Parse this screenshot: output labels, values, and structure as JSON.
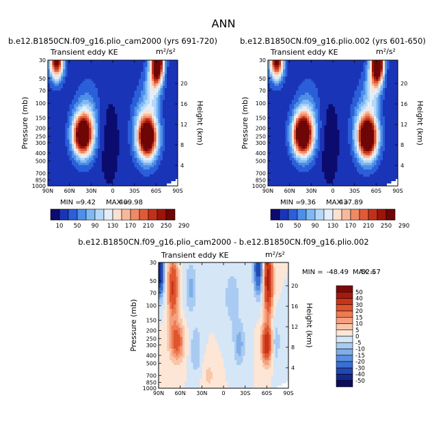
{
  "page_title": "ANN",
  "chart_data": [
    {
      "type": "heatmap",
      "title": "b.e12.B1850CN.f09_g16.plio_cam2000 (yrs 691-720)",
      "field": "Transient eddy KE",
      "units": "m²/s²",
      "ylabel": "Pressure (mb)",
      "ylabel_right": "Height (km)",
      "x_ticks": [
        "90N",
        "60N",
        "30N",
        "0",
        "30S",
        "60S",
        "90S"
      ],
      "y_ticks": [
        "30",
        "50",
        "70",
        "100",
        "150",
        "200",
        "250",
        "300",
        "400",
        "500",
        "700",
        "850",
        "1000"
      ],
      "height_ticks": [
        "20",
        "16",
        "12",
        "8",
        "4"
      ],
      "stats": {
        "min": "9.42",
        "max": "409.98"
      },
      "stats_labels": {
        "min": "MIN =",
        "max": "MAX ="
      },
      "colorbar": {
        "labels": [
          "10",
          "50",
          "90",
          "130",
          "170",
          "210",
          "250",
          "290"
        ],
        "colors": [
          "#0c0c6e",
          "#1a34b8",
          "#2a5fd9",
          "#4d8fe8",
          "#7fb8f3",
          "#b6d9f8",
          "#e3eefa",
          "#fbe2d0",
          "#f6b99b",
          "#ee8a65",
          "#e05a38",
          "#c3301a",
          "#9c1509",
          "#6e0606"
        ]
      }
    },
    {
      "type": "heatmap",
      "title": "b.e12.B1850CN.f09_g16.plio.002 (yrs 601-650)",
      "field": "Transient eddy KE",
      "units": "m²/s²",
      "ylabel": "Pressure (mb)",
      "ylabel_right": "Height (km)",
      "x_ticks": [
        "90N",
        "60N",
        "30N",
        "0",
        "30S",
        "60S",
        "90S"
      ],
      "y_ticks": [
        "30",
        "50",
        "70",
        "100",
        "150",
        "200",
        "250",
        "300",
        "400",
        "500",
        "700",
        "850",
        "1000"
      ],
      "height_ticks": [
        "20",
        "16",
        "12",
        "8",
        "4"
      ],
      "stats": {
        "min": "9.36",
        "max": "437.89"
      },
      "stats_labels": {
        "min": "MIN =",
        "max": "MAX ="
      },
      "colorbar": {
        "labels": [
          "10",
          "50",
          "90",
          "130",
          "170",
          "210",
          "250",
          "290"
        ],
        "colors": [
          "#0c0c6e",
          "#1a34b8",
          "#2a5fd9",
          "#4d8fe8",
          "#7fb8f3",
          "#b6d9f8",
          "#e3eefa",
          "#fbe2d0",
          "#f6b99b",
          "#ee8a65",
          "#e05a38",
          "#c3301a",
          "#9c1509",
          "#6e0606"
        ]
      }
    },
    {
      "type": "heatmap",
      "title": "b.e12.B1850CN.f09_g16.plio_cam2000 - b.e12.B1850CN.f09_g16.plio.002",
      "field": "Transient eddy KE",
      "units": "m²/s²",
      "ylabel": "Pressure (mb)",
      "ylabel_right": "Height (km)",
      "x_ticks": [
        "90N",
        "60N",
        "30N",
        "0",
        "30S",
        "60S",
        "90S"
      ],
      "y_ticks": [
        "30",
        "50",
        "70",
        "100",
        "150",
        "200",
        "250",
        "300",
        "400",
        "500",
        "700",
        "850",
        "1000"
      ],
      "height_ticks": [
        "20",
        "16",
        "12",
        "8",
        "4"
      ],
      "stats": {
        "min": "-48.49",
        "max": "52.57"
      },
      "stats_labels": {
        "min": "MIN =",
        "max": "MAX ="
      },
      "colorbar": {
        "labels": [
          "50",
          "40",
          "30",
          "20",
          "15",
          "10",
          "5",
          "0",
          "-5",
          "-10",
          "-15",
          "-20",
          "-30",
          "-40",
          "-50"
        ],
        "colors": [
          "#7a0a0a",
          "#a51a0e",
          "#c93418",
          "#e0542e",
          "#ec7a52",
          "#f5a07c",
          "#f9c6aa",
          "#fde6d6",
          "#d5e6f7",
          "#a9cbf1",
          "#7faee8",
          "#5a8fdf",
          "#3a6fd2",
          "#2148b2",
          "#15288a",
          "#0c0c5c"
        ]
      }
    }
  ]
}
